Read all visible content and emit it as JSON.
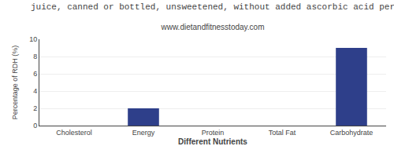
{
  "chart_data": {
    "type": "bar",
    "title": "juice, canned or bottled, unsweetened, without added ascorbic acid per",
    "subtitle": "www.dietandfitnesstoday.com",
    "categories": [
      "Cholesterol",
      "Energy",
      "Protein",
      "Total Fat",
      "Carbohydrate"
    ],
    "values": [
      0,
      2,
      0,
      0,
      9
    ],
    "color": "#2e3f8a",
    "xlabel": "Different Nutrients",
    "ylabel": "Percentage of RDH (%)",
    "ylim": [
      0,
      10
    ],
    "yticks": [
      0,
      2,
      4,
      6,
      8,
      10
    ],
    "grid": true
  }
}
